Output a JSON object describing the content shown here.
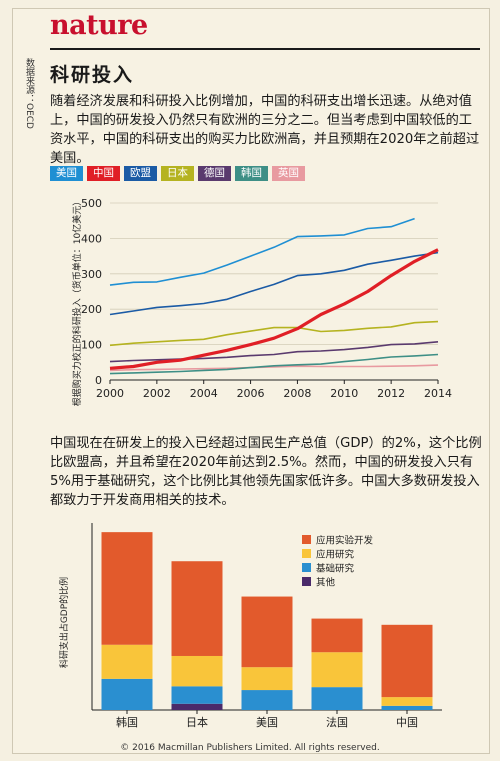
{
  "header": {
    "logo": "nature",
    "title": "科研投入",
    "source": "数据来源：OECD"
  },
  "intro_text": "随着经济发展和科研投入比例增加，中国的科研支出增长迅速。从绝对值上，中国的研发投入仍然只有欧洲的三分之二。但当考虑到中国较低的工资水平，中国的科研支出的购买力比欧洲高，并且预期在2020年之前超过美国。",
  "second_text": "中国现在在研发上的投入已经超过国民生产总值（GDP）的2%，这个比例比欧盟高，并且希望在2020年前达到2.5%。然而，中国的研发投入只有5%用于基础研究，这个比例比其他领先国家低许多。中国大多数研发投入都致力于开发商用相关的技术。",
  "copyright": "© 2016 Macmillan Publishers Limited. All rights reserved.",
  "colors": {
    "usa": "#1f8fd3",
    "china": "#e01f26",
    "eu": "#1b5ba5",
    "japan": "#b5b320",
    "germany": "#5a3a6e",
    "korea": "#3e8f86",
    "uk": "#e89aa0",
    "applied_dev": "#e25a2c",
    "applied_research": "#f9c53a",
    "basic_research": "#2a8fd0",
    "other": "#4a2a6a"
  },
  "chart_data": [
    {
      "type": "line",
      "ylabel": "根据购买力校正的科研投入（货币单位：10亿美元）",
      "ylim": [
        0,
        500
      ],
      "yticks": [
        0,
        100,
        200,
        300,
        400,
        500
      ],
      "xlim": [
        2000,
        2014
      ],
      "xticks": [
        2000,
        2002,
        2004,
        2006,
        2008,
        2010,
        2012,
        2014
      ],
      "legend": [
        "美国",
        "中国",
        "欧盟",
        "日本",
        "德国",
        "韩国",
        "英国"
      ],
      "legend_position": "top-left",
      "series": [
        {
          "name": "美国",
          "color_key": "usa",
          "x": [
            2000,
            2001,
            2002,
            2003,
            2004,
            2005,
            2006,
            2007,
            2008,
            2009,
            2010,
            2011,
            2012,
            2013
          ],
          "values": [
            268,
            276,
            277,
            290,
            302,
            325,
            350,
            375,
            405,
            407,
            410,
            428,
            433,
            456
          ]
        },
        {
          "name": "中国",
          "color_key": "china",
          "x": [
            2000,
            2001,
            2002,
            2003,
            2004,
            2005,
            2006,
            2007,
            2008,
            2009,
            2010,
            2011,
            2012,
            2013,
            2014
          ],
          "values": [
            33,
            38,
            50,
            56,
            70,
            84,
            100,
            118,
            145,
            185,
            215,
            250,
            295,
            335,
            368
          ]
        },
        {
          "name": "欧盟",
          "color_key": "eu",
          "x": [
            2000,
            2001,
            2002,
            2003,
            2004,
            2005,
            2006,
            2007,
            2008,
            2009,
            2010,
            2011,
            2012,
            2013,
            2014
          ],
          "values": [
            185,
            195,
            205,
            210,
            216,
            228,
            250,
            270,
            295,
            300,
            310,
            327,
            338,
            350,
            360
          ]
        },
        {
          "name": "日本",
          "color_key": "japan",
          "x": [
            2000,
            2001,
            2002,
            2003,
            2004,
            2005,
            2006,
            2007,
            2008,
            2009,
            2010,
            2011,
            2012,
            2013,
            2014
          ],
          "values": [
            98,
            104,
            108,
            112,
            115,
            128,
            138,
            148,
            148,
            137,
            140,
            146,
            150,
            162,
            165
          ]
        },
        {
          "name": "德国",
          "color_key": "germany",
          "x": [
            2000,
            2001,
            2002,
            2003,
            2004,
            2005,
            2006,
            2007,
            2008,
            2009,
            2010,
            2011,
            2012,
            2013,
            2014
          ],
          "values": [
            52,
            55,
            57,
            59,
            61,
            64,
            69,
            72,
            80,
            82,
            86,
            92,
            100,
            102,
            108
          ]
        },
        {
          "name": "韩国",
          "color_key": "korea",
          "x": [
            2000,
            2001,
            2002,
            2003,
            2004,
            2005,
            2006,
            2007,
            2008,
            2009,
            2010,
            2011,
            2012,
            2013,
            2014
          ],
          "values": [
            18,
            20,
            22,
            24,
            27,
            30,
            35,
            40,
            43,
            45,
            52,
            58,
            65,
            68,
            72
          ]
        },
        {
          "name": "英国",
          "color_key": "uk",
          "x": [
            2000,
            2001,
            2002,
            2003,
            2004,
            2005,
            2006,
            2007,
            2008,
            2009,
            2010,
            2011,
            2012,
            2013,
            2014
          ],
          "values": [
            27,
            29,
            30,
            31,
            32,
            33,
            35,
            37,
            39,
            38,
            38,
            38,
            39,
            40,
            42
          ]
        }
      ]
    },
    {
      "type": "bar",
      "stacked": true,
      "ylabel": "科研支出占GDP的比例",
      "categories": [
        "韩国",
        "日本",
        "美国",
        "法国",
        "中国"
      ],
      "legend_position": "top-right",
      "series": [
        {
          "name": "其他",
          "color_key": "other",
          "values": [
            0,
            0.15,
            0,
            0,
            0
          ]
        },
        {
          "name": "基础研究",
          "color_key": "basic_research",
          "values": [
            0.75,
            0.42,
            0.48,
            0.55,
            0.1
          ]
        },
        {
          "name": "应用研究",
          "color_key": "applied_research",
          "values": [
            0.82,
            0.73,
            0.55,
            0.84,
            0.21
          ]
        },
        {
          "name": "应用实验开发",
          "color_key": "applied_dev",
          "values": [
            2.71,
            2.28,
            1.7,
            0.81,
            1.74
          ]
        }
      ],
      "legend": [
        "应用实验开发",
        "应用研究",
        "基础研究",
        "其他"
      ]
    }
  ]
}
